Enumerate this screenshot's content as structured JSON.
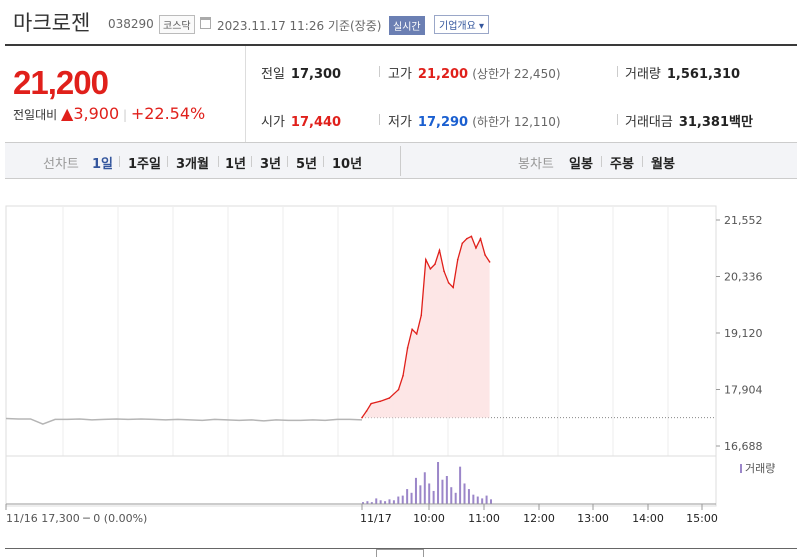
{
  "header": {
    "name": "마크로젠",
    "code": "038290",
    "market": "코스닥",
    "datetime": "2023.11.17 11:26 기준(장중)",
    "realtime": "실시간",
    "profile": "기업개요 ▾"
  },
  "price": {
    "current": "21,200",
    "change_label": "전일대비",
    "change_arrow": "▲",
    "change": "3,900",
    "change_pct": "+22.54%"
  },
  "stats": {
    "prev_label": "전일",
    "prev": "17,300",
    "high_label": "고가",
    "high": "21,200",
    "upper_limit": "(상한가 22,450)",
    "volume_label": "거래량",
    "volume": "1,561,310",
    "open_label": "시가",
    "open": "17,440",
    "low_label": "저가",
    "low": "17,290",
    "lower_limit": "(하한가 12,110)",
    "value_label": "거래대금",
    "value": "31,381",
    "value_unit": "백만"
  },
  "tabs": {
    "line_label": "선차트",
    "line": [
      "1일",
      "1주일",
      "3개월",
      "1년",
      "3년",
      "5년",
      "10년"
    ],
    "candle_label": "봉차트",
    "candle": [
      "일봉",
      "주봉",
      "월봉"
    ]
  },
  "colors": {
    "up": "#e0201b",
    "down": "#1a5fd0",
    "fill": "#fde3e3",
    "volume": "#9b86c9",
    "grey": "#b5b5b5"
  },
  "chart_data": {
    "type": "line",
    "ylabel_ticks": [
      "21,552",
      "20,336",
      "19,120",
      "17,904",
      "16,688"
    ],
    "y_tick_values": [
      21552,
      20336,
      19120,
      17904,
      16688
    ],
    "ylim": [
      16688,
      21552
    ],
    "baseline": 17300,
    "prev_day": {
      "label": "11/16",
      "info": "17,300 ─ 0 (0.00%)"
    },
    "x_labels": [
      "11/17",
      "10:00",
      "11:00",
      "12:00",
      "13:00",
      "14:00",
      "15:00"
    ],
    "prev_series": [
      17280,
      17270,
      17270,
      17160,
      17260,
      17260,
      17270,
      17250,
      17260,
      17270,
      17260,
      17270,
      17260,
      17250,
      17260,
      17250,
      17240,
      17260,
      17250,
      17240,
      17250,
      17230,
      17250,
      17240,
      17240,
      17250,
      17240,
      17260,
      17260,
      17250
    ],
    "today_series": [
      {
        "t": "09:00",
        "y": 17300
      },
      {
        "t": "09:05",
        "y": 17440
      },
      {
        "t": "09:10",
        "y": 17600
      },
      {
        "t": "09:20",
        "y": 17650
      },
      {
        "t": "09:30",
        "y": 17720
      },
      {
        "t": "09:40",
        "y": 17900
      },
      {
        "t": "09:45",
        "y": 18200
      },
      {
        "t": "09:50",
        "y": 18800
      },
      {
        "t": "09:55",
        "y": 19200
      },
      {
        "t": "10:00",
        "y": 19100
      },
      {
        "t": "10:05",
        "y": 19500
      },
      {
        "t": "10:10",
        "y": 20700
      },
      {
        "t": "10:15",
        "y": 20500
      },
      {
        "t": "10:20",
        "y": 20600
      },
      {
        "t": "10:25",
        "y": 20900
      },
      {
        "t": "10:30",
        "y": 20450
      },
      {
        "t": "10:35",
        "y": 20200
      },
      {
        "t": "10:40",
        "y": 20100
      },
      {
        "t": "10:45",
        "y": 20700
      },
      {
        "t": "10:50",
        "y": 21050
      },
      {
        "t": "10:55",
        "y": 21150
      },
      {
        "t": "11:00",
        "y": 21200
      },
      {
        "t": "11:05",
        "y": 20950
      },
      {
        "t": "11:10",
        "y": 21150
      },
      {
        "t": "11:15",
        "y": 20800
      },
      {
        "t": "11:20",
        "y": 20650
      }
    ],
    "volume_legend": "거래량",
    "volume_series": [
      2,
      3,
      2,
      6,
      4,
      3,
      5,
      4,
      8,
      9,
      16,
      12,
      28,
      20,
      34,
      22,
      14,
      45,
      26,
      30,
      18,
      12,
      40,
      22,
      16,
      10,
      8,
      6,
      9,
      5
    ]
  }
}
